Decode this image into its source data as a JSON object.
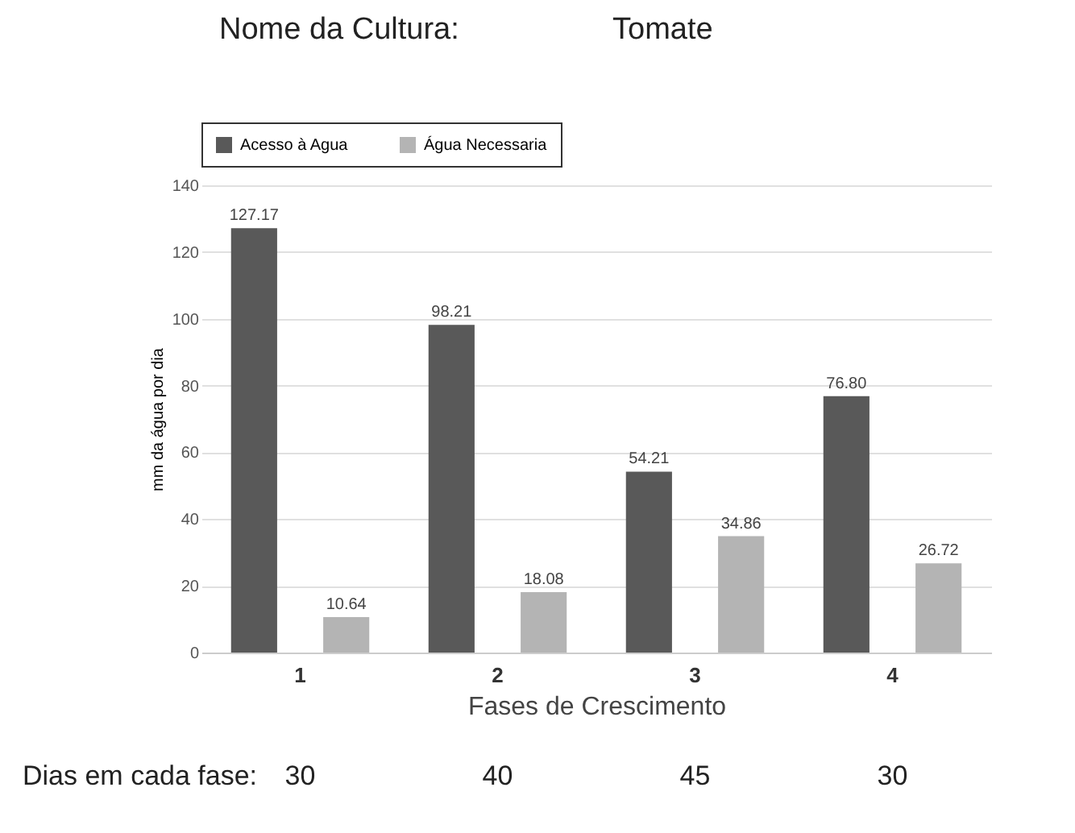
{
  "chart_data": {
    "type": "bar",
    "title": "Nome da Cultura:",
    "subtitle": "Tomate",
    "xlabel": "Fases de Crescimento",
    "ylabel": "mm da água por dia",
    "categories": [
      "1",
      "2",
      "3",
      "4"
    ],
    "series": [
      {
        "name": "Acesso à Agua",
        "color": "#595959",
        "values": [
          127.17,
          98.21,
          54.21,
          76.8
        ],
        "value_labels": [
          "127.17",
          "98.21",
          "54.21",
          "76.80"
        ]
      },
      {
        "name": "Água Necessaria",
        "color": "#b4b4b4",
        "values": [
          10.64,
          18.08,
          34.86,
          26.72
        ],
        "value_labels": [
          "10.64",
          "18.08",
          "34.86",
          "26.72"
        ]
      }
    ],
    "ylim": [
      0,
      140
    ],
    "yticks": [
      0,
      20,
      40,
      60,
      80,
      100,
      120,
      140
    ],
    "grid": "y",
    "legend": "top",
    "annotations": [
      "Dias em cada fase:",
      "30",
      "40",
      "45",
      "30"
    ]
  }
}
